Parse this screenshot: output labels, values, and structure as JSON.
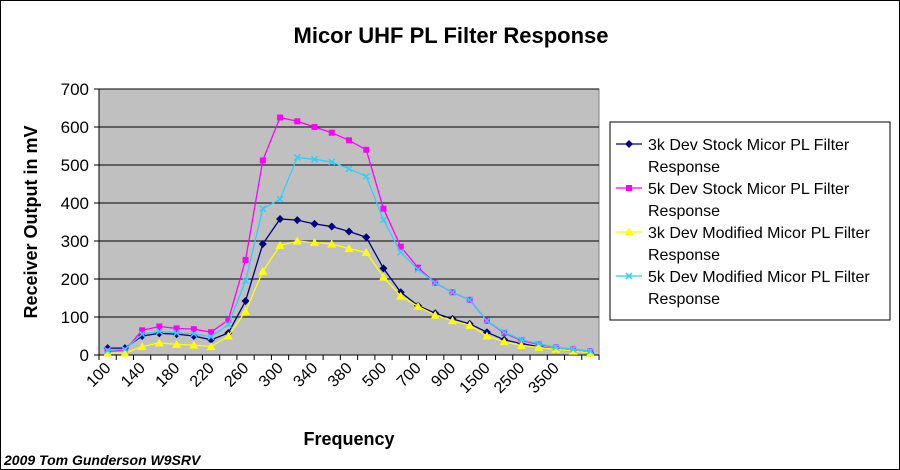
{
  "chart_data": {
    "type": "line",
    "title": "Micor UHF PL Filter Response",
    "xlabel": "Frequency",
    "ylabel": "Receiver Output in mV",
    "ylim": [
      0,
      700
    ],
    "yticks": [
      0,
      100,
      200,
      300,
      400,
      500,
      600,
      700
    ],
    "x": [
      100,
      120,
      140,
      160,
      180,
      200,
      220,
      240,
      260,
      280,
      300,
      320,
      340,
      360,
      380,
      400,
      500,
      600,
      700,
      800,
      900,
      1000,
      1500,
      2000,
      2500,
      3000,
      3500,
      4000,
      5000
    ],
    "xtick_labels": [
      "100",
      "140",
      "180",
      "220",
      "260",
      "300",
      "340",
      "380",
      "500",
      "700",
      "900",
      "1500",
      "2500",
      "3500"
    ],
    "xtick_positions": [
      100,
      140,
      180,
      220,
      260,
      300,
      340,
      380,
      500,
      700,
      900,
      1500,
      2500,
      3500
    ],
    "grid": true,
    "legend_position": "right",
    "plot_background": "#c0c0c0",
    "series": [
      {
        "name": "3k Dev Stock Micor PL Filter Response",
        "color": "#000080",
        "marker": "diamond",
        "values": [
          18,
          18,
          50,
          57,
          55,
          50,
          40,
          58,
          142,
          292,
          358,
          355,
          345,
          338,
          325,
          310,
          228,
          165,
          130,
          110,
          95,
          82,
          60,
          40,
          30,
          22,
          15,
          10,
          5
        ]
      },
      {
        "name": "5k Dev Stock Micor PL Filter Response",
        "color": "#ff00ff",
        "marker": "square",
        "values": [
          10,
          12,
          65,
          75,
          70,
          68,
          60,
          92,
          250,
          512,
          625,
          615,
          600,
          585,
          565,
          540,
          385,
          285,
          230,
          190,
          165,
          145,
          90,
          58,
          38,
          28,
          20,
          15,
          10
        ]
      },
      {
        "name": "3k Dev Modified Micor PL Filter Response",
        "color": "#ffff00",
        "marker": "triangle",
        "values": [
          5,
          5,
          22,
          32,
          28,
          26,
          22,
          50,
          115,
          220,
          288,
          300,
          296,
          292,
          280,
          270,
          205,
          155,
          128,
          105,
          90,
          78,
          50,
          35,
          25,
          20,
          15,
          10,
          5
        ]
      },
      {
        "name": "5k Dev Modified Micor PL Filter Response",
        "color": "#33ccff",
        "marker": "x",
        "values": [
          12,
          15,
          55,
          62,
          58,
          56,
          48,
          80,
          195,
          385,
          410,
          520,
          515,
          508,
          490,
          470,
          355,
          270,
          225,
          190,
          165,
          145,
          90,
          60,
          40,
          30,
          20,
          15,
          10
        ]
      }
    ]
  },
  "footer": {
    "credit": "2009 Tom Gunderson W9SRV"
  }
}
